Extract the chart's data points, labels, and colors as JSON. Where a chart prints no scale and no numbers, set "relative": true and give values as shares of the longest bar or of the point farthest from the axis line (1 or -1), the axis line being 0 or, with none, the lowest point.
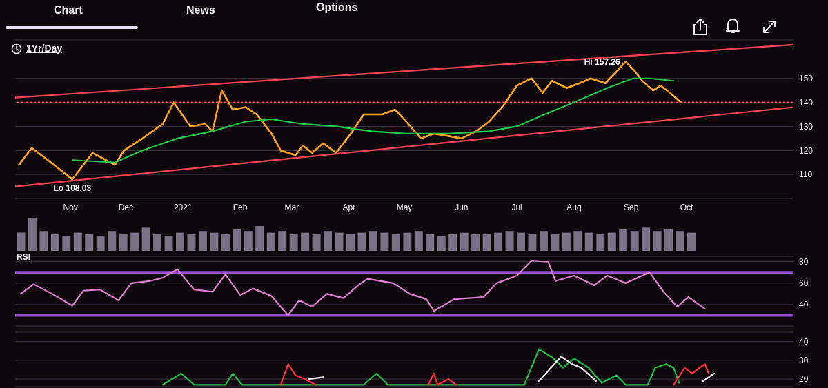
{
  "chart_data": [
    {
      "type": "line",
      "annotations": [
        "Chart",
        "News",
        "Options",
        "1Yr/Day",
        {
          "text": "Hi 157.26",
          "x": "2021-08-29",
          "y": 157
        },
        {
          "text": "Lo 108.03",
          "x": "2020-11-02",
          "y": 108
        }
      ],
      "xlim": [
        "2020-10-02",
        "2021-11-28"
      ],
      "xticks": [
        {
          "value": "2020-11-01",
          "label": "Nov"
        },
        {
          "value": "2020-12-01",
          "label": "Dec"
        },
        {
          "value": "2021-01-01",
          "label": "2021"
        },
        {
          "value": "2021-02-01",
          "label": "Feb"
        },
        {
          "value": "2021-03-01",
          "label": "Mar"
        },
        {
          "value": "2021-04-01",
          "label": "Apr"
        },
        {
          "value": "2021-05-01",
          "label": "May"
        },
        {
          "value": "2021-06-01",
          "label": "Jun"
        },
        {
          "value": "2021-07-01",
          "label": "Jul"
        },
        {
          "value": "2021-08-01",
          "label": "Aug"
        },
        {
          "value": "2021-09-01",
          "label": "Sep"
        },
        {
          "value": "2021-10-01",
          "label": "Oct"
        }
      ],
      "ylim": [
        100,
        166
      ],
      "yticks": [
        110,
        120,
        130,
        140,
        150
      ],
      "grid": "y",
      "series": [
        {
          "color": "#ffa21f",
          "x": [
            "2020-10-04",
            "2020-10-11",
            "2020-10-18",
            "2020-11-02",
            "2020-11-13",
            "2020-11-25",
            "2020-11-30",
            "2020-12-10",
            "2020-12-21",
            "2020-12-27",
            "2021-01-05",
            "2021-01-13",
            "2021-01-17",
            "2021-01-22",
            "2021-01-28",
            "2021-02-04",
            "2021-02-10",
            "2021-02-18",
            "2021-02-23",
            "2021-03-03",
            "2021-03-07",
            "2021-03-12",
            "2021-03-18",
            "2021-03-25",
            "2021-04-02",
            "2021-04-09",
            "2021-04-19",
            "2021-04-26",
            "2021-05-02",
            "2021-05-10",
            "2021-05-17",
            "2021-05-25",
            "2021-06-01",
            "2021-06-09",
            "2021-06-16",
            "2021-06-24",
            "2021-07-01",
            "2021-07-09",
            "2021-07-15",
            "2021-07-20",
            "2021-07-28",
            "2021-08-04",
            "2021-08-10",
            "2021-08-18",
            "2021-08-23",
            "2021-08-29",
            "2021-09-03",
            "2021-09-07",
            "2021-09-13",
            "2021-09-17",
            "2021-09-22",
            "2021-09-28"
          ],
          "values": [
            114,
            121,
            117,
            108,
            119,
            114,
            120,
            125,
            131,
            140,
            130,
            131,
            128,
            145,
            137,
            138,
            135,
            127,
            120,
            118,
            122,
            119,
            123,
            119,
            127,
            135,
            135,
            137,
            132,
            125,
            127,
            126,
            125,
            128,
            132,
            139,
            147,
            150,
            144,
            149,
            146,
            148,
            150,
            148,
            152,
            157,
            153,
            149,
            145,
            147,
            144,
            140
          ]
        },
        {
          "color": "#1fc94a",
          "x": [
            "2020-11-02",
            "2020-11-25",
            "2020-12-10",
            "2020-12-29",
            "2021-01-17",
            "2021-02-04",
            "2021-02-18",
            "2021-03-07",
            "2021-03-25",
            "2021-04-13",
            "2021-05-02",
            "2021-05-25",
            "2021-06-16",
            "2021-07-01",
            "2021-07-16",
            "2021-08-01",
            "2021-08-19",
            "2021-09-02",
            "2021-09-11",
            "2021-09-24"
          ],
          "values": [
            116,
            115,
            120,
            125,
            128,
            132,
            133,
            131,
            130,
            128,
            127,
            127,
            128,
            130,
            135,
            140,
            146,
            150,
            150,
            149
          ]
        },
        {
          "color": "#ff4455",
          "x": [
            "2020-10-02",
            "2021-11-28"
          ],
          "values": [
            142,
            164
          ]
        },
        {
          "color": "#ff4455",
          "x": [
            "2020-10-02",
            "2021-11-28"
          ],
          "values": [
            105,
            138
          ]
        }
      ],
      "ref_lines": [
        {
          "axis": "y",
          "value": 140,
          "color": "#ff4455",
          "line_style": "dotted"
        }
      ]
    },
    {
      "type": "bar",
      "relative": true,
      "color": "#7a7287",
      "categories": [
        null,
        null,
        null,
        null,
        null,
        null,
        null,
        null,
        null,
        null,
        null,
        null,
        null,
        null,
        null,
        null,
        null,
        null,
        null,
        null,
        null,
        null,
        null,
        null,
        null,
        null,
        null,
        null,
        null,
        null,
        null,
        null,
        null,
        null,
        null,
        null,
        null,
        null,
        null,
        null,
        null,
        null,
        null,
        null,
        null,
        null,
        null,
        null,
        null,
        null,
        null,
        null,
        null,
        null,
        null,
        null,
        null,
        null,
        null,
        null
      ],
      "values": [
        0.55,
        1.0,
        0.6,
        0.5,
        0.45,
        0.55,
        0.5,
        0.45,
        0.6,
        0.5,
        0.55,
        0.7,
        0.5,
        0.45,
        0.55,
        0.5,
        0.6,
        0.55,
        0.5,
        0.65,
        0.6,
        0.75,
        0.55,
        0.6,
        0.5,
        0.55,
        0.5,
        0.6,
        0.55,
        0.5,
        0.55,
        0.6,
        0.55,
        0.5,
        0.55,
        0.6,
        0.5,
        0.45,
        0.5,
        0.55,
        0.5,
        0.5,
        0.55,
        0.6,
        0.55,
        0.5,
        0.6,
        0.5,
        0.55,
        0.6,
        0.55,
        0.5,
        0.55,
        0.65,
        0.6,
        0.7,
        0.6,
        0.65,
        0.6,
        0.55
      ]
    },
    {
      "type": "line",
      "title": "RSI",
      "xlim": [
        "2020-10-02",
        "2021-11-28"
      ],
      "tick_labels": "y",
      "ylim": [
        20,
        85
      ],
      "yticks": [
        40,
        60,
        80
      ],
      "grid": "y",
      "series": [
        {
          "color": "#e07fd4",
          "x": [
            "2020-10-05",
            "2020-10-12",
            "2020-10-22",
            "2020-11-02",
            "2020-11-08",
            "2020-11-17",
            "2020-11-27",
            "2020-12-04",
            "2020-12-14",
            "2020-12-21",
            "2020-12-29",
            "2021-01-07",
            "2021-01-17",
            "2021-01-24",
            "2021-02-01",
            "2021-02-08",
            "2021-02-18",
            "2021-02-27",
            "2021-03-05",
            "2021-03-12",
            "2021-03-20",
            "2021-03-29",
            "2021-04-06",
            "2021-04-11",
            "2021-04-25",
            "2021-05-04",
            "2021-05-13",
            "2021-05-17",
            "2021-05-28",
            "2021-06-13",
            "2021-06-20",
            "2021-07-01",
            "2021-07-09",
            "2021-07-18",
            "2021-07-22",
            "2021-08-01",
            "2021-08-12",
            "2021-08-19",
            "2021-08-29",
            "2021-09-11",
            "2021-09-19",
            "2021-09-26",
            "2021-10-02",
            "2021-10-11"
          ],
          "values": [
            50,
            59,
            50,
            39,
            53,
            54,
            44,
            60,
            62,
            65,
            73,
            54,
            52,
            68,
            49,
            55,
            48,
            30,
            44,
            38,
            50,
            46,
            58,
            64,
            60,
            50,
            45,
            34,
            45,
            47,
            60,
            67,
            81,
            80,
            62,
            67,
            58,
            67,
            60,
            70,
            51,
            38,
            47,
            36
          ]
        }
      ],
      "ref_lines": [
        {
          "axis": "y",
          "value": 70,
          "color": "#9b4fd9"
        },
        {
          "axis": "y",
          "value": 30,
          "color": "#9b4fd9"
        }
      ]
    },
    {
      "type": "line",
      "xlim": [
        "2020-10-02",
        "2021-11-28"
      ],
      "tick_labels": "y",
      "ylim": [
        16,
        45
      ],
      "yticks": [
        20,
        30,
        40
      ],
      "grid": "y",
      "series": [
        {
          "color": "#1fbf4a",
          "x": [
            "2020-12-21",
            "2020-12-31",
            "2021-01-07",
            "2021-01-24",
            "2021-01-28",
            "2021-02-02",
            "2021-04-09",
            "2021-04-16",
            "2021-04-22",
            "2021-07-05",
            "2021-07-13",
            "2021-07-21",
            "2021-07-26",
            "2021-08-01",
            "2021-08-09",
            "2021-08-16",
            "2021-08-24",
            "2021-08-29",
            "2021-09-10",
            "2021-09-14",
            "2021-09-20",
            "2021-09-24",
            "2021-09-27"
          ],
          "values": [
            17,
            23,
            17,
            17,
            23,
            17,
            17,
            23,
            17,
            17,
            36,
            31,
            26,
            31,
            26,
            18,
            22,
            17,
            17,
            26,
            28,
            26,
            18
          ]
        },
        {
          "color": "#ff2e3e",
          "x": [
            "2021-02-23",
            "2021-02-27",
            "2021-03-03",
            "2021-03-08",
            "2021-03-14",
            "2021-04-15",
            "2021-05-14",
            "2021-05-17",
            "2021-05-19",
            "2021-05-25",
            "2021-05-29",
            "2021-07-15",
            "2021-09-24",
            "2021-09-30",
            "2021-10-04",
            "2021-10-08",
            "2021-10-11",
            "2021-10-13"
          ],
          "values": [
            17,
            28,
            22,
            20,
            17,
            null,
            17,
            23,
            17,
            20,
            17,
            null,
            17,
            26,
            23,
            26,
            28,
            23
          ]
        },
        {
          "color": "#f0f0f0",
          "x": [
            "2021-03-10",
            "2021-03-18",
            "2021-05-20",
            "2021-07-13",
            "2021-07-25",
            "2021-07-31",
            "2021-08-05",
            "2021-08-13",
            "2021-09-10",
            "2021-10-10",
            "2021-10-16"
          ],
          "values": [
            20,
            21,
            null,
            19,
            32,
            28,
            26,
            19,
            null,
            19,
            23
          ]
        }
      ]
    }
  ]
}
